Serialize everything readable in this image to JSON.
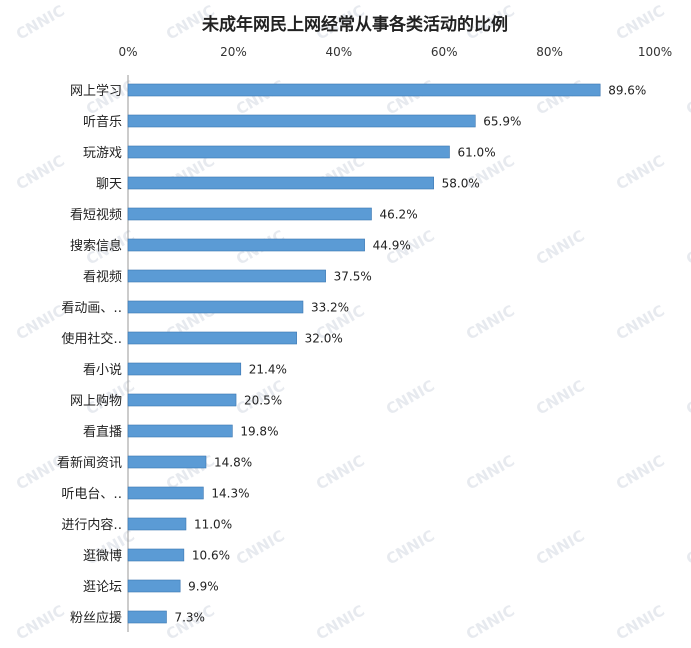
{
  "chart_data": {
    "type": "bar",
    "orientation": "horizontal",
    "title": "未成年网民上网经常从事各类活动的比例",
    "watermark": "CNNIC",
    "xlabel": "",
    "ylabel": "",
    "xlim": [
      0,
      100
    ],
    "x_ticks": [
      "0%",
      "20%",
      "40%",
      "60%",
      "80%",
      "100%"
    ],
    "x_axis_position": "top",
    "grid": false,
    "bar_color": "#5b9bd5",
    "bar_edge_color": "#3a75b0",
    "categories": [
      "网上学习",
      "听音乐",
      "玩游戏",
      "聊天",
      "看短视频",
      "搜索信息",
      "看视频",
      "看动画、‥",
      "使用社交‥",
      "看小说",
      "网上购物",
      "看直播",
      "看新闻资讯",
      "听电台、‥",
      "进行内容‥",
      "逛微博",
      "逛论坛",
      "粉丝应援"
    ],
    "values": [
      89.6,
      65.9,
      61.0,
      58.0,
      46.2,
      44.9,
      37.5,
      33.2,
      32.0,
      21.4,
      20.5,
      19.8,
      14.8,
      14.3,
      11.0,
      10.6,
      9.9,
      7.3
    ],
    "value_labels": [
      "89.6%",
      "65.9%",
      "61.0%",
      "58.0%",
      "46.2%",
      "44.9%",
      "37.5%",
      "33.2%",
      "32.0%",
      "21.4%",
      "20.5%",
      "19.8%",
      "14.8%",
      "14.3%",
      "11.0%",
      "10.6%",
      "9.9%",
      "7.3%"
    ]
  }
}
